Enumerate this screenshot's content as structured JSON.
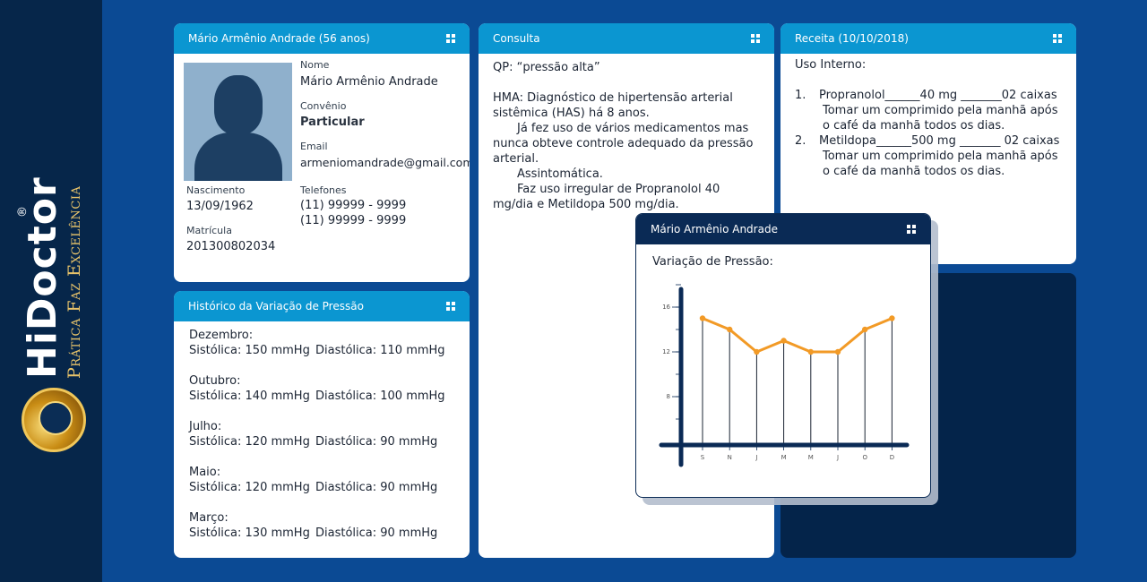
{
  "brand": {
    "name": "HiDoctor",
    "registered": "®",
    "tagline": "Prática Faz Excelência"
  },
  "patient_card": {
    "header": "Mário Armênio Andrade (56 anos)",
    "nome_label": "Nome",
    "nome": "Mário Armênio Andrade",
    "convenio_label": "Convênio",
    "convenio": "Particular",
    "email_label": "Email",
    "email": "armeniomandrade@gmail.com",
    "nascimento_label": "Nascimento",
    "nascimento": "13/09/1962",
    "telefones_label": "Telefones",
    "telefone_1": "(11) 99999 - 9999",
    "telefone_2": "(11) 99999 - 9999",
    "matricula_label": "Matrícula",
    "matricula": "201300802034"
  },
  "history_card": {
    "header": "Histórico da Variação de Pressão",
    "entries": [
      {
        "month": "Dezembro:",
        "sys": "Sistólica: 150 mmHg",
        "dia": "Diastólica: 110 mmHg"
      },
      {
        "month": "Outubro:",
        "sys": "Sistólica: 140 mmHg",
        "dia": "Diastólica: 100 mmHg"
      },
      {
        "month": "Julho:",
        "sys": "Sistólica: 120 mmHg",
        "dia": "Diastólica: 90 mmHg"
      },
      {
        "month": "Maio:",
        "sys": "Sistólica: 120 mmHg",
        "dia": "Diastólica: 90 mmHg"
      },
      {
        "month": "Março:",
        "sys": "Sistólica: 130 mmHg",
        "dia": "Diastólica: 90 mmHg"
      }
    ]
  },
  "consulta_card": {
    "header": "Consulta",
    "qp": "QP: “pressão alta”",
    "hma": "HMA: Diagnóstico de hipertensão arterial sistêmica (HAS) há 8 anos.",
    "p1": "Já fez uso de vários medicamentos mas nunca obteve controle adequado da pressão arterial.",
    "p2": "Assintomática.",
    "p3": "Faz uso irregular de Propranolol 40 mg/dia e Metildopa 500 mg/dia."
  },
  "receita_card": {
    "header": "Receita (10/10/2018)",
    "uso": "Uso Interno:",
    "items": [
      {
        "num": "1.",
        "line": "Propranolol______40 mg _______02 caixas",
        "instr": "Tomar um comprimido pela manhã após o café da manhã todos os dias."
      },
      {
        "num": "2.",
        "line": "Metildopa______500 mg _______ 02 caixas",
        "instr": "Tomar um comprimido pela manhã após o café da manhã todos os dias."
      }
    ]
  },
  "chart_window": {
    "header": "Mário Armênio Andrade",
    "title": "Variação de Pressão:"
  },
  "chart_data": {
    "type": "line",
    "categories": [
      "S",
      "N",
      "J",
      "M",
      "M",
      "J",
      "O",
      "D"
    ],
    "values": [
      15,
      14,
      12,
      13,
      12,
      12,
      14,
      15
    ],
    "ylim": [
      4,
      20
    ],
    "yticks": [
      8,
      12,
      16
    ],
    "line_color": "#f29a26",
    "axis_color": "#0a2a55",
    "grid": false
  },
  "colors": {
    "background": "#0b4a94",
    "sidebar": "#06264a",
    "panel_header": "#0b96d1",
    "dark_header": "#0a2a55"
  }
}
